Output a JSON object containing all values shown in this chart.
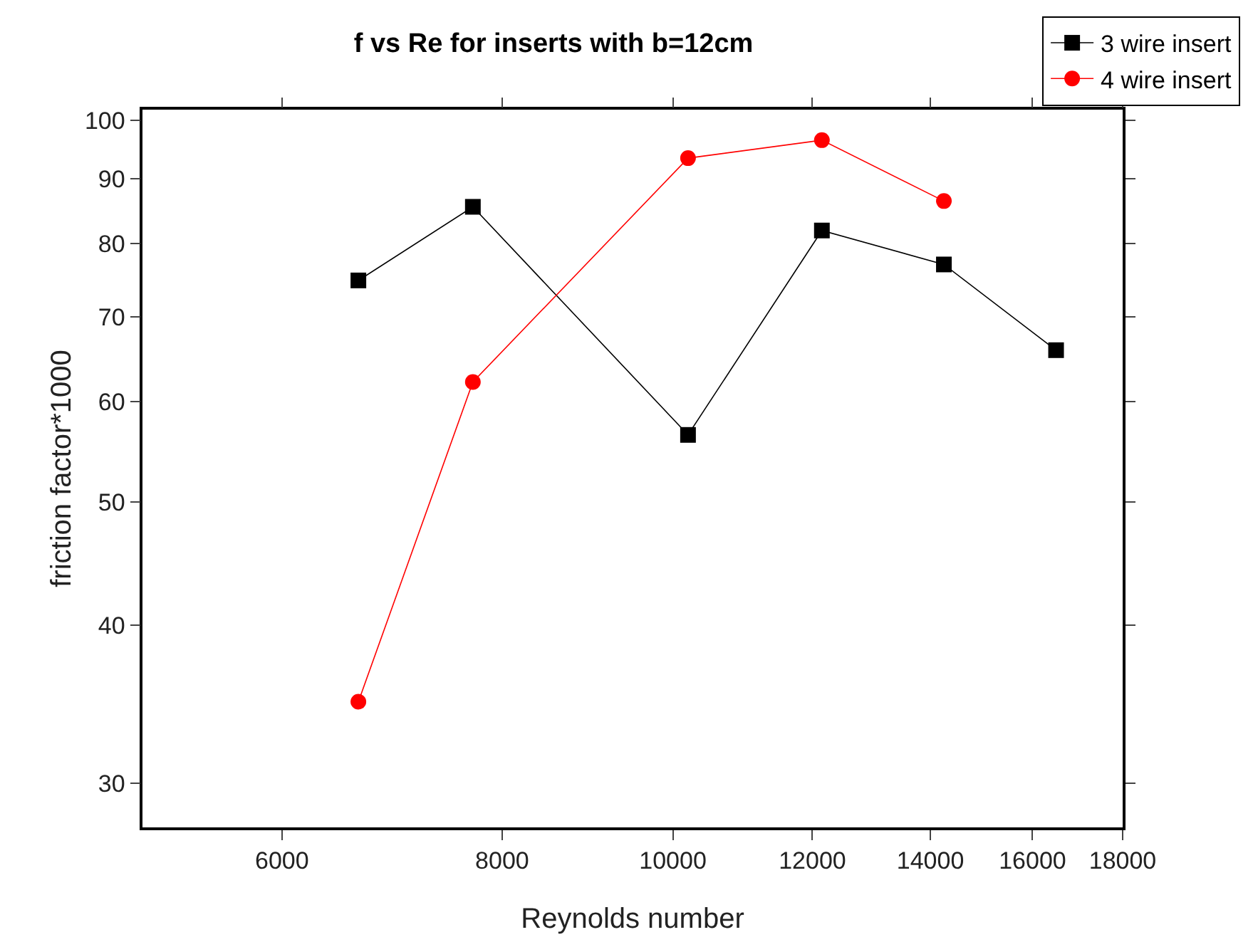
{
  "chart_data": {
    "type": "line",
    "title": "f vs Re for inserts with b=12cm",
    "xlabel": "Reynolds number",
    "ylabel": "friction factor*1000",
    "log": "xy",
    "grid": false,
    "legend": "top right",
    "line_style": "solid",
    "xlim": [
      5000,
      18000
    ],
    "xticks": [
      6000,
      8000,
      10000,
      12000,
      14000,
      16000,
      18000
    ],
    "ylim": [
      27.7,
      102
    ],
    "yticks": [
      30,
      40,
      50,
      60,
      70,
      80,
      90,
      100
    ],
    "series": [
      {
        "name": "3 wire insert",
        "color": "#000000",
        "marker": "square",
        "x": [
          6630,
          7700,
          10200,
          12150,
          14250,
          16500
        ],
        "values": [
          74.8,
          85.5,
          56.5,
          81.9,
          77.0,
          65.9
        ]
      },
      {
        "name": "4 wire insert",
        "color": "#ff0000",
        "marker": "circle",
        "x": [
          6630,
          7700,
          10200,
          12150,
          14250
        ],
        "values": [
          34.8,
          62.2,
          93.4,
          96.5,
          86.4
        ]
      }
    ]
  }
}
